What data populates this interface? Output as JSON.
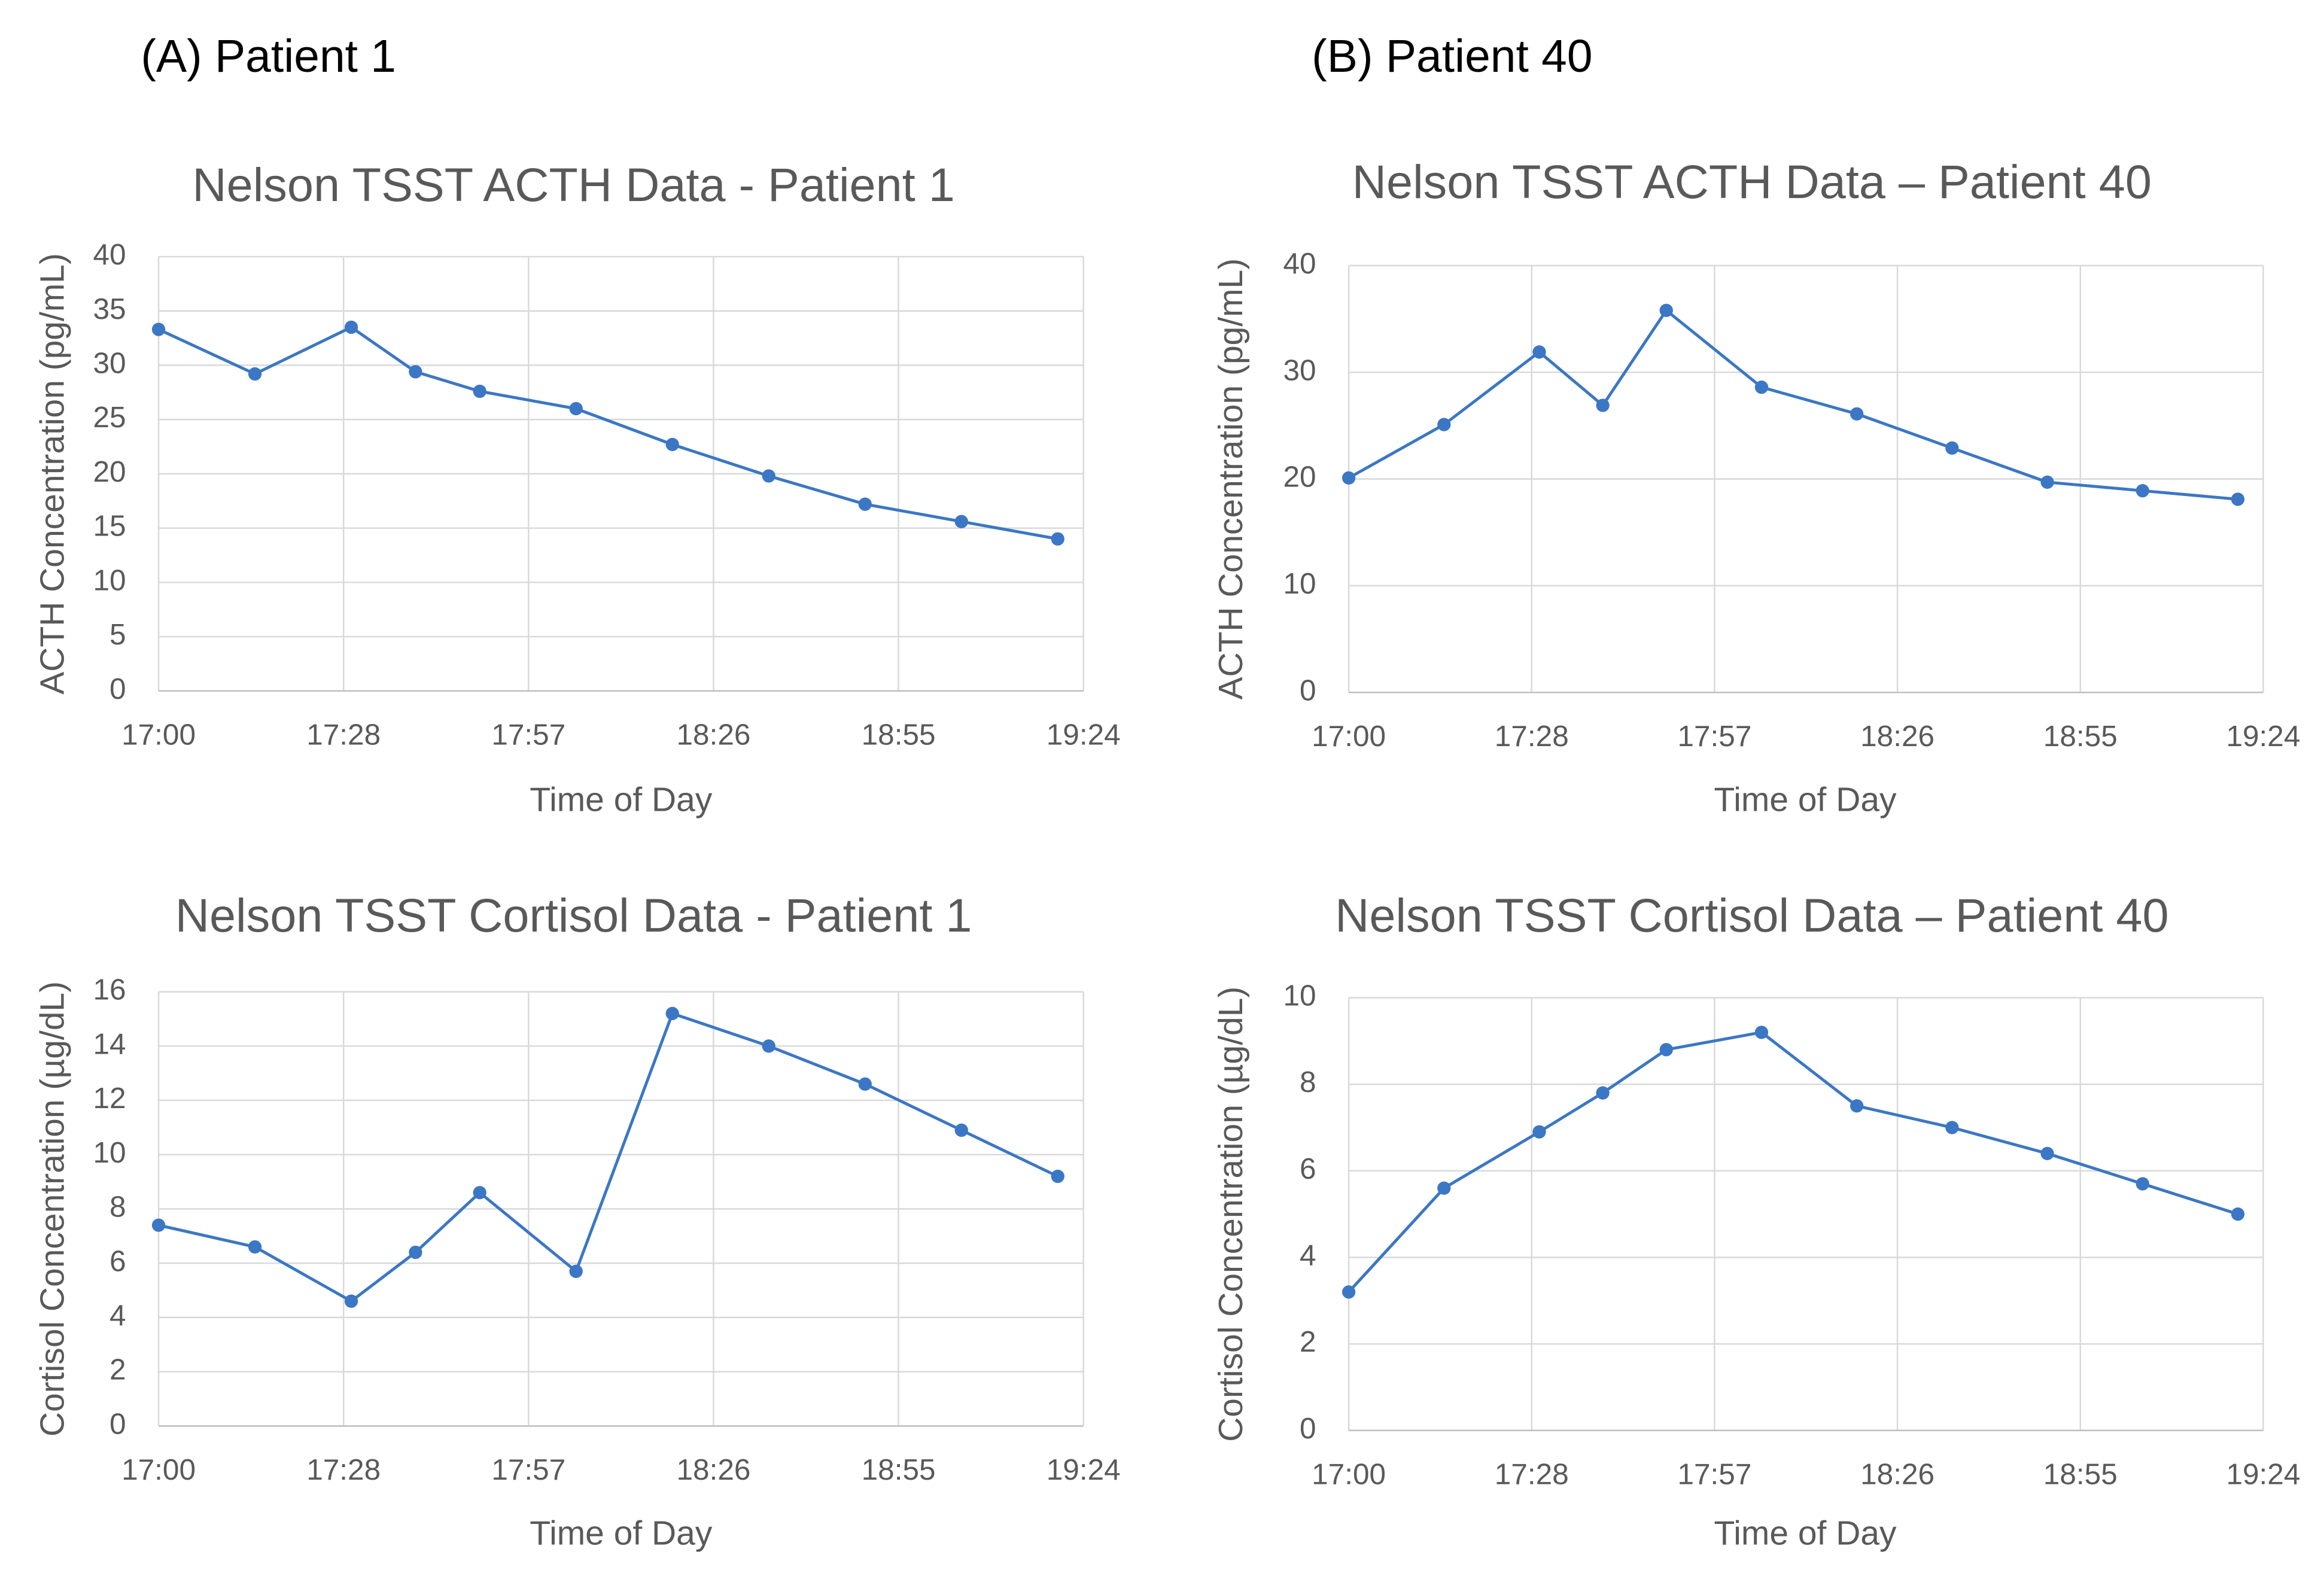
{
  "panel_labels": [
    "(A) Patient 1",
    "(B) Patient 40"
  ],
  "chart_data": [
    {
      "type": "line",
      "title": "Nelson TSST ACTH Data - Patient 1",
      "x_label": "Time of Day",
      "y_label": "ACTH Concentration (pg/mL)",
      "x": [
        1020,
        1035,
        1050,
        1060,
        1070,
        1085,
        1100,
        1115,
        1130,
        1145,
        1160
      ],
      "values": [
        33.3,
        29.2,
        33.5,
        29.4,
        27.6,
        26.0,
        22.7,
        19.8,
        17.2,
        15.6,
        14.0
      ],
      "color": "#3b77c4",
      "grid": true,
      "xlim": [
        1020,
        1164
      ],
      "xticks": [
        {
          "value": 1020,
          "label": "17:00"
        },
        {
          "value": 1048.8,
          "label": "17:28"
        },
        {
          "value": 1077.6,
          "label": "17:57"
        },
        {
          "value": 1106.4,
          "label": "18:26"
        },
        {
          "value": 1135.2,
          "label": "18:55"
        },
        {
          "value": 1164,
          "label": "19:24"
        }
      ],
      "ylim": [
        0,
        40
      ],
      "yticks": [
        0,
        5,
        10,
        15,
        20,
        25,
        30,
        35,
        40
      ]
    },
    {
      "type": "line",
      "title": "Nelson TSST ACTH Data – Patient 40",
      "x_label": "Time of Day",
      "y_label": "ACTH Concentration (pg/mL)",
      "x": [
        1020,
        1035,
        1050,
        1060,
        1070,
        1085,
        1100,
        1115,
        1130,
        1145,
        1160
      ],
      "values": [
        20.1,
        25.1,
        31.9,
        26.9,
        35.8,
        28.6,
        26.1,
        22.9,
        19.7,
        18.9,
        18.1
      ],
      "color": "#3b77c4",
      "grid": true,
      "xlim": [
        1020,
        1164
      ],
      "xticks": [
        {
          "value": 1020,
          "label": "17:00"
        },
        {
          "value": 1048.8,
          "label": "17:28"
        },
        {
          "value": 1077.6,
          "label": "17:57"
        },
        {
          "value": 1106.4,
          "label": "18:26"
        },
        {
          "value": 1135.2,
          "label": "18:55"
        },
        {
          "value": 1164,
          "label": "19:24"
        }
      ],
      "ylim": [
        0,
        40
      ],
      "yticks": [
        0,
        10,
        20,
        30,
        40
      ]
    },
    {
      "type": "line",
      "title": "Nelson TSST Cortisol Data - Patient 1",
      "x_label": "Time of Day",
      "y_label": "Cortisol Concentration (µg/dL)",
      "x": [
        1020,
        1035,
        1050,
        1060,
        1070,
        1085,
        1100,
        1115,
        1130,
        1145,
        1160
      ],
      "values": [
        7.4,
        6.6,
        4.6,
        6.4,
        8.6,
        5.7,
        15.2,
        14.0,
        12.6,
        10.9,
        9.2
      ],
      "color": "#3b77c4",
      "grid": true,
      "xlim": [
        1020,
        1164
      ],
      "xticks": [
        {
          "value": 1020,
          "label": "17:00"
        },
        {
          "value": 1048.8,
          "label": "17:28"
        },
        {
          "value": 1077.6,
          "label": "17:57"
        },
        {
          "value": 1106.4,
          "label": "18:26"
        },
        {
          "value": 1135.2,
          "label": "18:55"
        },
        {
          "value": 1164,
          "label": "19:24"
        }
      ],
      "ylim": [
        0,
        16
      ],
      "yticks": [
        0,
        2,
        4,
        6,
        8,
        10,
        12,
        14,
        16
      ]
    },
    {
      "type": "line",
      "title": "Nelson TSST Cortisol Data – Patient 40",
      "x_label": "Time of Day",
      "y_label": "Cortisol Concentration (µg/dL)",
      "x": [
        1020,
        1035,
        1050,
        1060,
        1070,
        1085,
        1100,
        1115,
        1130,
        1145,
        1160
      ],
      "values": [
        3.2,
        5.6,
        6.9,
        7.8,
        8.8,
        9.2,
        7.5,
        7.0,
        6.4,
        5.7,
        5.0
      ],
      "color": "#3b77c4",
      "grid": true,
      "xlim": [
        1020,
        1164
      ],
      "xticks": [
        {
          "value": 1020,
          "label": "17:00"
        },
        {
          "value": 1048.8,
          "label": "17:28"
        },
        {
          "value": 1077.6,
          "label": "17:57"
        },
        {
          "value": 1106.4,
          "label": "18:26"
        },
        {
          "value": 1135.2,
          "label": "18:55"
        },
        {
          "value": 1164,
          "label": "19:24"
        }
      ],
      "ylim": [
        0,
        10
      ],
      "yticks": [
        0,
        2,
        4,
        6,
        8,
        10
      ]
    }
  ]
}
